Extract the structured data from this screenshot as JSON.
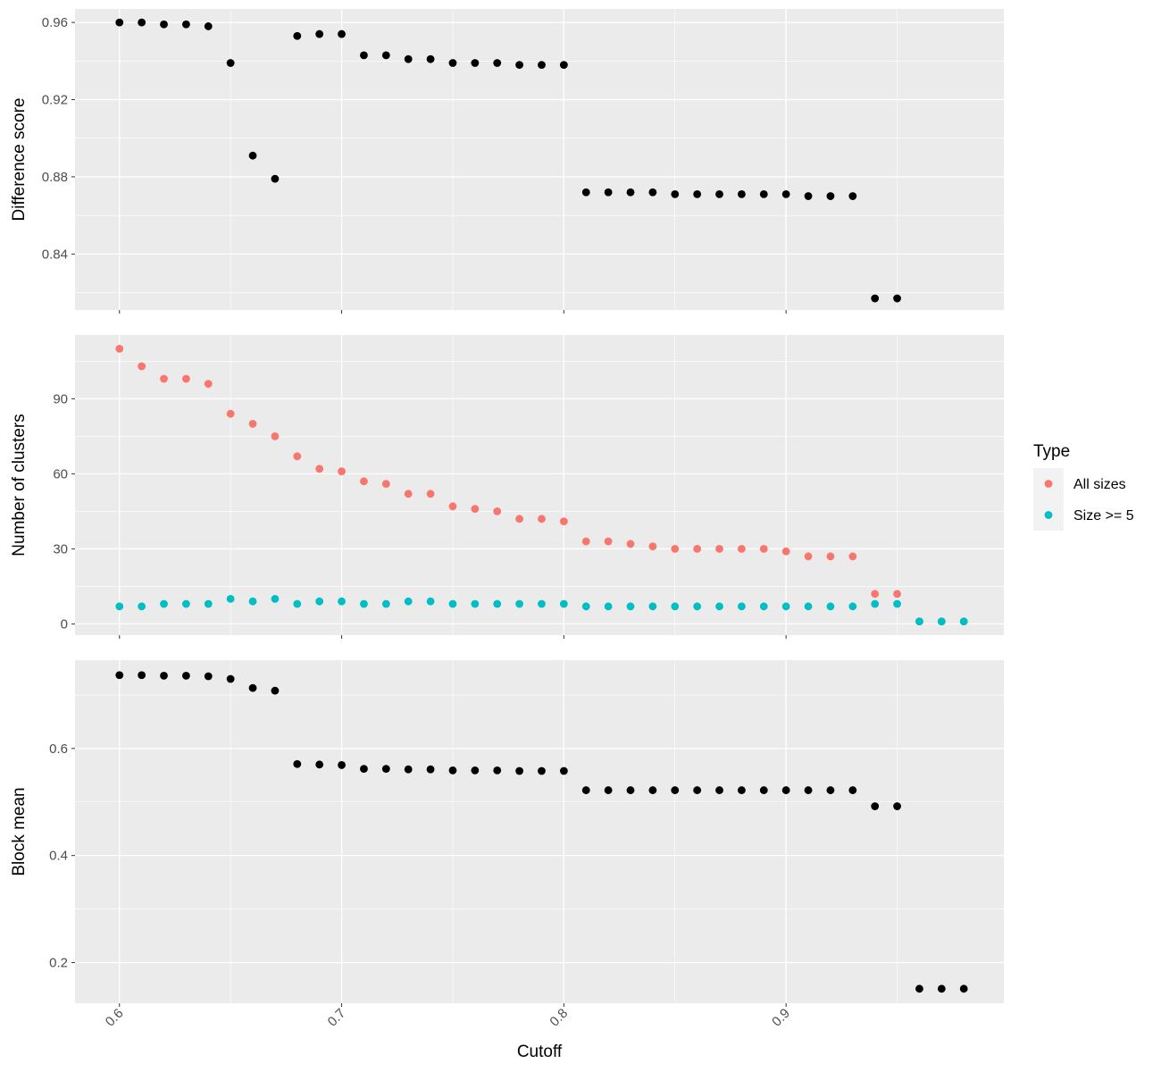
{
  "chart_data": [
    {
      "type": "scatter",
      "ylabel": "Difference score",
      "xlim": [
        0.58,
        0.998
      ],
      "ylim": [
        0.811,
        0.967
      ],
      "y_ticks": [
        0.84,
        0.88,
        0.92,
        0.96
      ],
      "y_tick_labels": [
        "0.84",
        "0.88",
        "0.92",
        "0.96"
      ],
      "series": [
        {
          "color": "#000000",
          "x": [
            0.6,
            0.61,
            0.62,
            0.63,
            0.64,
            0.65,
            0.66,
            0.67,
            0.68,
            0.69,
            0.7,
            0.71,
            0.72,
            0.73,
            0.74,
            0.75,
            0.76,
            0.77,
            0.78,
            0.79,
            0.8,
            0.81,
            0.82,
            0.83,
            0.84,
            0.85,
            0.86,
            0.87,
            0.88,
            0.89,
            0.9,
            0.91,
            0.92,
            0.93,
            0.94,
            0.95
          ],
          "y": [
            0.96,
            0.96,
            0.959,
            0.959,
            0.958,
            0.939,
            0.891,
            0.879,
            0.953,
            0.954,
            0.954,
            0.943,
            0.943,
            0.941,
            0.941,
            0.939,
            0.939,
            0.939,
            0.938,
            0.938,
            0.938,
            0.872,
            0.872,
            0.872,
            0.872,
            0.871,
            0.871,
            0.871,
            0.871,
            0.871,
            0.871,
            0.87,
            0.87,
            0.87,
            0.817,
            0.817
          ]
        }
      ]
    },
    {
      "type": "scatter",
      "ylabel": "Number of clusters",
      "xlim": [
        0.58,
        0.998
      ],
      "ylim": [
        -4.5,
        115.5
      ],
      "y_ticks": [
        0,
        30,
        60,
        90
      ],
      "y_tick_labels": [
        "0",
        "30",
        "60",
        "90"
      ],
      "legend": {
        "title": "Type",
        "position": "right",
        "items": [
          {
            "label": "All sizes",
            "color": "#F8766D"
          },
          {
            "label": "Size >= 5",
            "color": "#00BFC4"
          }
        ]
      },
      "series": [
        {
          "name": "All sizes",
          "color": "#F8766D",
          "x": [
            0.6,
            0.61,
            0.62,
            0.63,
            0.64,
            0.65,
            0.66,
            0.67,
            0.68,
            0.69,
            0.7,
            0.71,
            0.72,
            0.73,
            0.74,
            0.75,
            0.76,
            0.77,
            0.78,
            0.79,
            0.8,
            0.81,
            0.82,
            0.83,
            0.84,
            0.85,
            0.86,
            0.87,
            0.88,
            0.89,
            0.9,
            0.91,
            0.92,
            0.93,
            0.94,
            0.95,
            0.96,
            0.97,
            0.98
          ],
          "y": [
            110,
            103,
            98,
            98,
            96,
            84,
            80,
            75,
            67,
            62,
            61,
            57,
            56,
            52,
            52,
            47,
            46,
            45,
            42,
            42,
            41,
            33,
            33,
            32,
            31,
            30,
            30,
            30,
            30,
            30,
            29,
            27,
            27,
            27,
            12,
            12,
            1,
            1,
            1
          ]
        },
        {
          "name": "Size >= 5",
          "color": "#00BFC4",
          "x": [
            0.6,
            0.61,
            0.62,
            0.63,
            0.64,
            0.65,
            0.66,
            0.67,
            0.68,
            0.69,
            0.7,
            0.71,
            0.72,
            0.73,
            0.74,
            0.75,
            0.76,
            0.77,
            0.78,
            0.79,
            0.8,
            0.81,
            0.82,
            0.83,
            0.84,
            0.85,
            0.86,
            0.87,
            0.88,
            0.89,
            0.9,
            0.91,
            0.92,
            0.93,
            0.94,
            0.95,
            0.96,
            0.97,
            0.98
          ],
          "y": [
            7,
            7,
            8,
            8,
            8,
            10,
            9,
            10,
            8,
            9,
            9,
            8,
            8,
            9,
            9,
            8,
            8,
            8,
            8,
            8,
            8,
            7,
            7,
            7,
            7,
            7,
            7,
            7,
            7,
            7,
            7,
            7,
            7,
            7,
            8,
            8,
            1,
            1,
            1
          ]
        }
      ]
    },
    {
      "type": "scatter",
      "ylabel": "Block mean",
      "xlabel": "Cutoff",
      "xlim": [
        0.58,
        0.998
      ],
      "ylim": [
        0.124,
        0.765
      ],
      "y_ticks": [
        0.2,
        0.4,
        0.6
      ],
      "y_tick_labels": [
        "0.2",
        "0.4",
        "0.6"
      ],
      "x_ticks": [
        0.6,
        0.7,
        0.8,
        0.9
      ],
      "x_tick_labels": [
        "0.6",
        "0.7",
        "0.8",
        "0.9"
      ],
      "series": [
        {
          "color": "#000000",
          "x": [
            0.6,
            0.61,
            0.62,
            0.63,
            0.64,
            0.65,
            0.66,
            0.67,
            0.68,
            0.69,
            0.7,
            0.71,
            0.72,
            0.73,
            0.74,
            0.75,
            0.76,
            0.77,
            0.78,
            0.79,
            0.8,
            0.81,
            0.82,
            0.83,
            0.84,
            0.85,
            0.86,
            0.87,
            0.88,
            0.89,
            0.9,
            0.91,
            0.92,
            0.93,
            0.94,
            0.95,
            0.96,
            0.97,
            0.98
          ],
          "y": [
            0.737,
            0.737,
            0.736,
            0.736,
            0.735,
            0.73,
            0.713,
            0.708,
            0.571,
            0.57,
            0.569,
            0.562,
            0.562,
            0.561,
            0.561,
            0.559,
            0.559,
            0.559,
            0.558,
            0.558,
            0.558,
            0.522,
            0.522,
            0.522,
            0.522,
            0.522,
            0.522,
            0.522,
            0.522,
            0.522,
            0.522,
            0.522,
            0.522,
            0.522,
            0.492,
            0.492,
            0.151,
            0.151,
            0.151
          ]
        }
      ]
    }
  ]
}
